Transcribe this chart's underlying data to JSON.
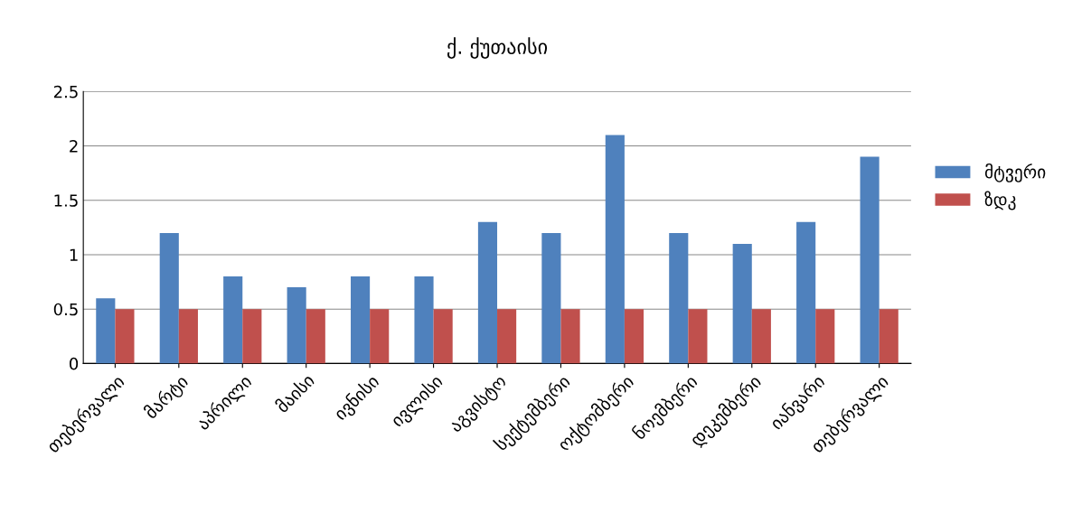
{
  "chart_data": {
    "type": "bar",
    "title": "ქ. ქუთაისი",
    "categories": [
      "თებერვალი",
      "მარტი",
      "აპრილი",
      "მაისი",
      "ივნისი",
      "ივლისი",
      "აგვისტო",
      "სექტემბერი",
      "ოქტომბერი",
      "ნოემბერი",
      "დეკემბერი",
      "იანვარი",
      "თებერვალი"
    ],
    "series": [
      {
        "name": "მტვერი",
        "color": "#4f81bd",
        "values": [
          0.6,
          1.2,
          0.8,
          0.7,
          0.8,
          0.8,
          1.3,
          1.2,
          2.1,
          1.2,
          1.1,
          1.3,
          1.9
        ]
      },
      {
        "name": "ზდკ",
        "color": "#c0504d",
        "values": [
          0.5,
          0.5,
          0.5,
          0.5,
          0.5,
          0.5,
          0.5,
          0.5,
          0.5,
          0.5,
          0.5,
          0.5,
          0.5
        ]
      }
    ],
    "ylim": [
      0,
      2.5
    ],
    "yticks": [
      0,
      0.5,
      1,
      1.5,
      2,
      2.5
    ],
    "grid": "y",
    "legend": "right"
  }
}
